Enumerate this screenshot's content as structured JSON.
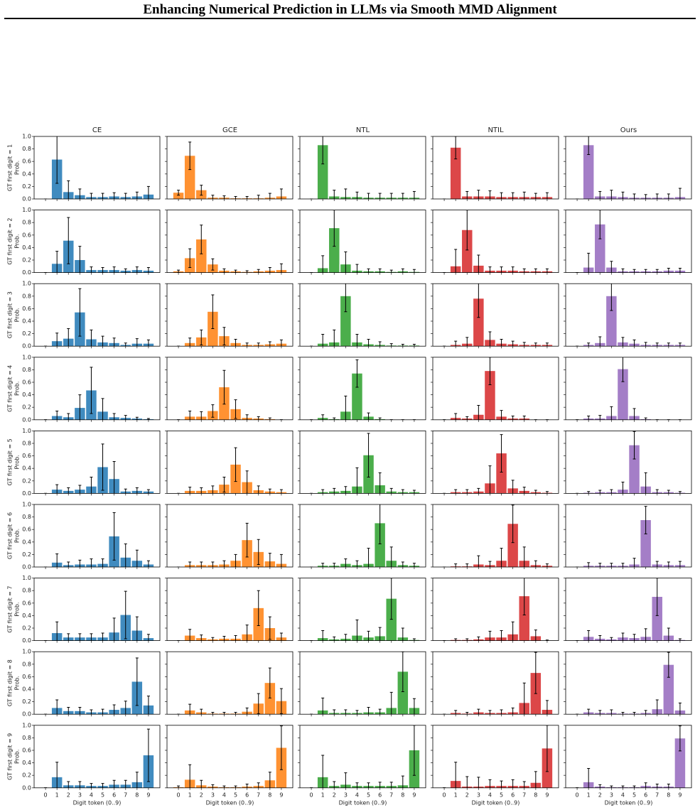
{
  "header": {
    "title": "Enhancing Numerical Prediction in LLMs via Smooth MMD Alignment"
  },
  "chart_data": {
    "type": "bar",
    "columns": [
      {
        "name": "CE",
        "color": "#1f77b4"
      },
      {
        "name": "GCE",
        "color": "#ff7f0e"
      },
      {
        "name": "NTL",
        "color": "#2ca02c"
      },
      {
        "name": "NTIL",
        "color": "#d62728"
      },
      {
        "name": "Ours",
        "color": "#9467bd"
      }
    ],
    "ylabel": "Prob.",
    "xlabel": "Digit token (0..9)",
    "categories": [
      "0",
      "1",
      "2",
      "3",
      "4",
      "5",
      "6",
      "7",
      "8",
      "9"
    ],
    "ylim": [
      0,
      1
    ],
    "yticks": [
      {
        "value": 0,
        "label": "0.0"
      },
      0.2,
      0.4,
      0.6,
      0.8,
      {
        "value": 1,
        "label": "1.0"
      }
    ],
    "rows": [
      {
        "label": "GT first digit = 1",
        "values": [
          [
            0,
            0.63,
            0.11,
            0.06,
            0.03,
            0.03,
            0.04,
            0.03,
            0.04,
            0.07
          ],
          [
            0.1,
            0.69,
            0.14,
            0.02,
            0.02,
            0.01,
            0.01,
            0.01,
            0.02,
            0.04
          ],
          [
            0,
            0.86,
            0.04,
            0.03,
            0.03,
            0.02,
            0.02,
            0.02,
            0.02,
            0.02
          ],
          [
            0,
            0.82,
            0.04,
            0.04,
            0.04,
            0.03,
            0.03,
            0.03,
            0.03,
            0.03
          ],
          [
            0,
            0.86,
            0.04,
            0.04,
            0.03,
            0.02,
            0.02,
            0.02,
            0.02,
            0.03
          ]
        ],
        "errors": [
          [
            0,
            0.38,
            0.18,
            0.1,
            0.06,
            0.06,
            0.06,
            0.06,
            0.07,
            0.13
          ],
          [
            0.04,
            0.22,
            0.08,
            0.04,
            0.03,
            0.03,
            0.03,
            0.05,
            0.07,
            0.12
          ],
          [
            0,
            0.3,
            0.1,
            0.13,
            0.08,
            0.07,
            0.07,
            0.07,
            0.07,
            0.1
          ],
          [
            0,
            0.18,
            0.08,
            0.1,
            0.09,
            0.07,
            0.07,
            0.08,
            0.06,
            0.07
          ],
          [
            0,
            0.15,
            0.08,
            0.1,
            0.08,
            0.06,
            0.05,
            0.06,
            0.06,
            0.14
          ]
        ]
      },
      {
        "label": "GT first digit = 2",
        "values": [
          [
            0,
            0.14,
            0.51,
            0.2,
            0.04,
            0.04,
            0.04,
            0.03,
            0.04,
            0.03
          ],
          [
            0.02,
            0.23,
            0.53,
            0.13,
            0.03,
            0.02,
            0.01,
            0.02,
            0.03,
            0.04
          ],
          [
            0,
            0.07,
            0.71,
            0.13,
            0.03,
            0.02,
            0.02,
            0.01,
            0.02,
            0.01
          ],
          [
            0,
            0.1,
            0.68,
            0.11,
            0.03,
            0.03,
            0.03,
            0.02,
            0.02,
            0.02
          ],
          [
            0,
            0.08,
            0.77,
            0.08,
            0.02,
            0.02,
            0.02,
            0.02,
            0.03,
            0.03
          ]
        ],
        "errors": [
          [
            0,
            0.2,
            0.37,
            0.22,
            0.05,
            0.04,
            0.05,
            0.03,
            0.05,
            0.05
          ],
          [
            0.02,
            0.15,
            0.23,
            0.09,
            0.03,
            0.02,
            0.02,
            0.03,
            0.05,
            0.1
          ],
          [
            0,
            0.2,
            0.29,
            0.2,
            0.1,
            0.04,
            0.04,
            0.03,
            0.04,
            0.04
          ],
          [
            0,
            0.27,
            0.32,
            0.17,
            0.06,
            0.06,
            0.06,
            0.04,
            0.04,
            0.04
          ],
          [
            0,
            0.23,
            0.23,
            0.1,
            0.04,
            0.03,
            0.03,
            0.03,
            0.04,
            0.04
          ]
        ]
      },
      {
        "label": "GT first digit = 3",
        "values": [
          [
            0,
            0.08,
            0.12,
            0.54,
            0.11,
            0.06,
            0.05,
            0.02,
            0.04,
            0.04
          ],
          [
            0,
            0.05,
            0.14,
            0.55,
            0.16,
            0.05,
            0.02,
            0.02,
            0.03,
            0.04
          ],
          [
            0,
            0.04,
            0.06,
            0.8,
            0.06,
            0.03,
            0.02,
            0.01,
            0.01,
            0.01
          ],
          [
            0,
            0.02,
            0.04,
            0.76,
            0.1,
            0.04,
            0.03,
            0.02,
            0.02,
            0.02
          ],
          [
            0,
            0.02,
            0.05,
            0.8,
            0.06,
            0.04,
            0.02,
            0.02,
            0.02,
            0.02
          ]
        ],
        "errors": [
          [
            0,
            0.13,
            0.16,
            0.38,
            0.15,
            0.1,
            0.08,
            0.03,
            0.08,
            0.06
          ],
          [
            0,
            0.08,
            0.12,
            0.27,
            0.14,
            0.06,
            0.03,
            0.03,
            0.04,
            0.06
          ],
          [
            0,
            0.15,
            0.2,
            0.25,
            0.13,
            0.08,
            0.05,
            0.03,
            0.02,
            0.02
          ],
          [
            0,
            0.06,
            0.1,
            0.3,
            0.13,
            0.07,
            0.05,
            0.04,
            0.03,
            0.03
          ],
          [
            0,
            0.03,
            0.1,
            0.23,
            0.08,
            0.06,
            0.04,
            0.03,
            0.03,
            0.03
          ]
        ]
      },
      {
        "label": "GT first digit = 4",
        "values": [
          [
            0,
            0.06,
            0.04,
            0.19,
            0.47,
            0.13,
            0.04,
            0.03,
            0.02,
            0.01
          ],
          [
            0,
            0.05,
            0.05,
            0.14,
            0.52,
            0.17,
            0.03,
            0.02,
            0.01,
            0
          ],
          [
            0,
            0.03,
            0.01,
            0.13,
            0.74,
            0.05,
            0.01,
            0,
            0,
            0
          ],
          [
            0,
            0.03,
            0.02,
            0.08,
            0.78,
            0.05,
            0.02,
            0.02,
            0,
            0
          ],
          [
            0,
            0.02,
            0.02,
            0.06,
            0.81,
            0.06,
            0.01,
            0,
            0,
            0
          ]
        ],
        "errors": [
          [
            0,
            0.08,
            0.06,
            0.21,
            0.37,
            0.21,
            0.06,
            0.04,
            0.02,
            0.01
          ],
          [
            0,
            0.09,
            0.08,
            0.1,
            0.27,
            0.15,
            0.05,
            0.03,
            0.02,
            0
          ],
          [
            0,
            0.05,
            0.02,
            0.25,
            0.22,
            0.06,
            0.02,
            0,
            0,
            0
          ],
          [
            0,
            0.07,
            0.03,
            0.15,
            0.22,
            0.1,
            0.04,
            0.04,
            0,
            0
          ],
          [
            0,
            0.04,
            0.05,
            0.15,
            0.2,
            0.12,
            0.02,
            0,
            0,
            0
          ]
        ]
      },
      {
        "label": "GT first digit = 5",
        "values": [
          [
            0,
            0.06,
            0.04,
            0.06,
            0.11,
            0.42,
            0.23,
            0.03,
            0.04,
            0.03
          ],
          [
            0,
            0.04,
            0.04,
            0.05,
            0.14,
            0.46,
            0.18,
            0.05,
            0.03,
            0.02
          ],
          [
            0,
            0.02,
            0.03,
            0.04,
            0.11,
            0.61,
            0.13,
            0.03,
            0.02,
            0.02
          ],
          [
            0,
            0.02,
            0.02,
            0.03,
            0.16,
            0.64,
            0.08,
            0.04,
            0.02,
            0.01
          ],
          [
            0,
            0.01,
            0.02,
            0.02,
            0.06,
            0.77,
            0.11,
            0.02,
            0.02,
            0.01
          ]
        ],
        "errors": [
          [
            0,
            0.08,
            0.05,
            0.07,
            0.15,
            0.37,
            0.28,
            0.04,
            0.05,
            0.03
          ],
          [
            0,
            0.06,
            0.05,
            0.07,
            0.12,
            0.27,
            0.18,
            0.07,
            0.04,
            0.04
          ],
          [
            0,
            0.04,
            0.05,
            0.07,
            0.3,
            0.35,
            0.2,
            0.05,
            0.04,
            0.03
          ],
          [
            0,
            0.04,
            0.04,
            0.05,
            0.28,
            0.3,
            0.13,
            0.06,
            0.03,
            0.02
          ],
          [
            0,
            0.02,
            0.03,
            0.04,
            0.12,
            0.22,
            0.22,
            0.04,
            0.03,
            0.02
          ]
        ]
      },
      {
        "label": "GT first digit = 6",
        "values": [
          [
            0,
            0.07,
            0.03,
            0.04,
            0.04,
            0.05,
            0.49,
            0.15,
            0.1,
            0.04
          ],
          [
            0,
            0.03,
            0.03,
            0.03,
            0.04,
            0.1,
            0.43,
            0.24,
            0.09,
            0.05
          ],
          [
            0,
            0.02,
            0.02,
            0.05,
            0.03,
            0.05,
            0.7,
            0.1,
            0.03,
            0.02
          ],
          [
            0,
            0.01,
            0.01,
            0.04,
            0.03,
            0.1,
            0.69,
            0.1,
            0.03,
            0.02
          ],
          [
            0,
            0.02,
            0.02,
            0.02,
            0.02,
            0.04,
            0.75,
            0.04,
            0.03,
            0.03
          ]
        ],
        "errors": [
          [
            0,
            0.14,
            0.05,
            0.07,
            0.09,
            0.08,
            0.38,
            0.22,
            0.17,
            0.06
          ],
          [
            0,
            0.05,
            0.05,
            0.05,
            0.06,
            0.1,
            0.27,
            0.2,
            0.13,
            0.15
          ],
          [
            0,
            0.04,
            0.04,
            0.08,
            0.07,
            0.25,
            0.33,
            0.22,
            0.05,
            0.04
          ],
          [
            0,
            0.04,
            0.04,
            0.14,
            0.06,
            0.2,
            0.3,
            0.22,
            0.07,
            0.03
          ],
          [
            0,
            0.05,
            0.04,
            0.04,
            0.04,
            0.1,
            0.22,
            0.05,
            0.05,
            0.06
          ]
        ]
      },
      {
        "label": "GT first digit = 7",
        "values": [
          [
            0,
            0.12,
            0.05,
            0.05,
            0.05,
            0.05,
            0.13,
            0.41,
            0.16,
            0.04
          ],
          [
            0,
            0.08,
            0.04,
            0.02,
            0.03,
            0.03,
            0.1,
            0.52,
            0.2,
            0.05
          ],
          [
            0,
            0.04,
            0.02,
            0.03,
            0.08,
            0.05,
            0.07,
            0.67,
            0.05,
            0.01
          ],
          [
            0,
            0.01,
            0.01,
            0.02,
            0.05,
            0.05,
            0.1,
            0.71,
            0.07,
            0
          ],
          [
            0,
            0.06,
            0.03,
            0.02,
            0.05,
            0.04,
            0.06,
            0.7,
            0.08,
            0.01
          ]
        ],
        "errors": [
          [
            0,
            0.18,
            0.06,
            0.06,
            0.06,
            0.07,
            0.23,
            0.38,
            0.22,
            0.06
          ],
          [
            0,
            0.1,
            0.05,
            0.03,
            0.04,
            0.05,
            0.15,
            0.28,
            0.18,
            0.07
          ],
          [
            0,
            0.12,
            0.04,
            0.07,
            0.25,
            0.1,
            0.14,
            0.33,
            0.15,
            0.02
          ],
          [
            0,
            0.02,
            0.02,
            0.04,
            0.1,
            0.11,
            0.2,
            0.3,
            0.1,
            0.01
          ],
          [
            0,
            0.1,
            0.05,
            0.03,
            0.07,
            0.06,
            0.13,
            0.3,
            0.12,
            0.02
          ]
        ]
      },
      {
        "label": "GT first digit = 8",
        "values": [
          [
            0,
            0.1,
            0.05,
            0.05,
            0.03,
            0.03,
            0.07,
            0.1,
            0.52,
            0.14
          ],
          [
            0,
            0.06,
            0.03,
            0.01,
            0.01,
            0.01,
            0.04,
            0.17,
            0.5,
            0.21
          ],
          [
            0,
            0.06,
            0.02,
            0.02,
            0.02,
            0.03,
            0.03,
            0.1,
            0.68,
            0.1
          ],
          [
            0,
            0.02,
            0.01,
            0.03,
            0.02,
            0.02,
            0.03,
            0.18,
            0.66,
            0.07
          ],
          [
            0,
            0.03,
            0.02,
            0.02,
            0.01,
            0.01,
            0.02,
            0.08,
            0.79,
            0.06
          ]
        ],
        "errors": [
          [
            0,
            0.13,
            0.06,
            0.06,
            0.04,
            0.05,
            0.08,
            0.11,
            0.38,
            0.15
          ],
          [
            0,
            0.1,
            0.05,
            0.02,
            0.02,
            0.02,
            0.06,
            0.16,
            0.24,
            0.2
          ],
          [
            0,
            0.2,
            0.05,
            0.05,
            0.04,
            0.08,
            0.05,
            0.25,
            0.32,
            0.15
          ],
          [
            0,
            0.04,
            0.02,
            0.05,
            0.04,
            0.05,
            0.07,
            0.32,
            0.33,
            0.15
          ],
          [
            0,
            0.05,
            0.04,
            0.05,
            0.02,
            0.02,
            0.04,
            0.15,
            0.2,
            0.12
          ]
        ]
      },
      {
        "label": "GT first digit = 9",
        "values": [
          [
            0,
            0.17,
            0.04,
            0.04,
            0.03,
            0.03,
            0.05,
            0.05,
            0.09,
            0.52
          ],
          [
            0.01,
            0.13,
            0.04,
            0.02,
            0.01,
            0.01,
            0.02,
            0.03,
            0.12,
            0.64
          ],
          [
            0,
            0.17,
            0.03,
            0.05,
            0.03,
            0.03,
            0.03,
            0.03,
            0.04,
            0.6
          ],
          [
            0,
            0.11,
            0.02,
            0.02,
            0.03,
            0.03,
            0.03,
            0.03,
            0.08,
            0.63
          ],
          [
            0,
            0.09,
            0.02,
            0.01,
            0.01,
            0.01,
            0.03,
            0.02,
            0.02,
            0.79
          ]
        ],
        "errors": [
          [
            0,
            0.24,
            0.06,
            0.06,
            0.04,
            0.04,
            0.07,
            0.07,
            0.16,
            0.42
          ],
          [
            0.02,
            0.24,
            0.08,
            0.03,
            0.02,
            0.02,
            0.04,
            0.05,
            0.13,
            0.35
          ],
          [
            0,
            0.35,
            0.07,
            0.19,
            0.05,
            0.05,
            0.06,
            0.06,
            0.15,
            0.4
          ],
          [
            0,
            0.3,
            0.16,
            0.15,
            0.1,
            0.08,
            0.1,
            0.07,
            0.18,
            0.37
          ],
          [
            0,
            0.22,
            0.03,
            0.02,
            0.02,
            0.02,
            0.05,
            0.04,
            0.04,
            0.2
          ]
        ]
      }
    ]
  }
}
